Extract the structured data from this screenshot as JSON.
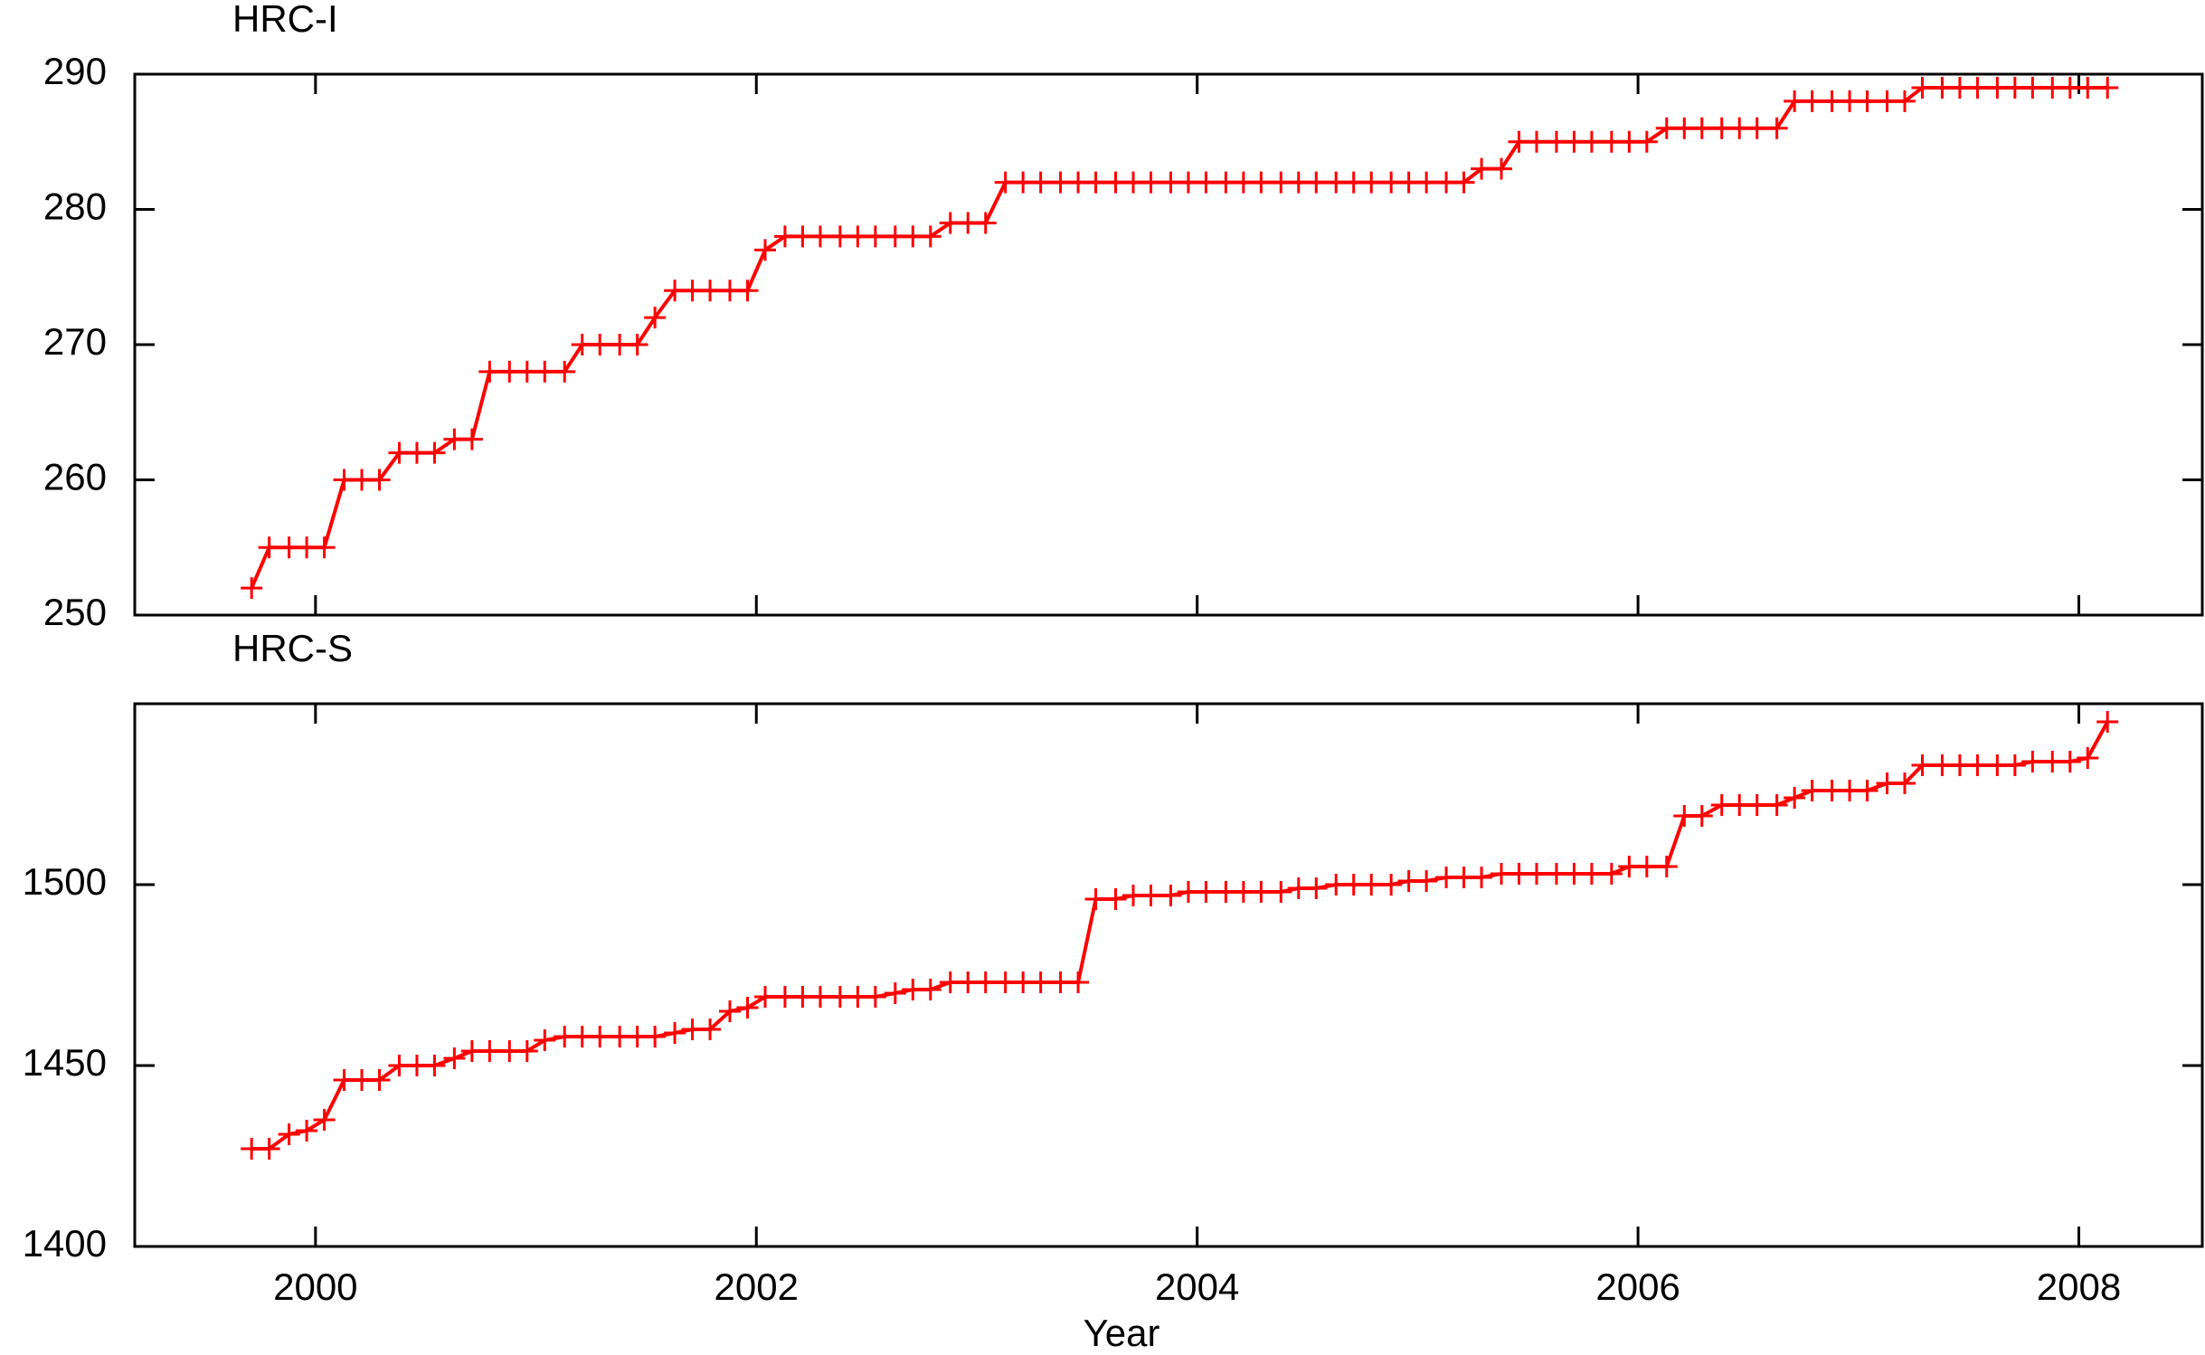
{
  "chart_data": [
    {
      "type": "line",
      "title": "HRC-I",
      "x": [
        1999.71,
        1999.79,
        1999.88,
        1999.96,
        2000.04,
        2000.13,
        2000.21,
        2000.29,
        2000.38,
        2000.46,
        2000.54,
        2000.63,
        2000.71,
        2000.79,
        2000.88,
        2000.96,
        2001.04,
        2001.13,
        2001.21,
        2001.29,
        2001.38,
        2001.46,
        2001.54,
        2001.63,
        2001.71,
        2001.79,
        2001.88,
        2001.96,
        2002.04,
        2002.13,
        2002.21,
        2002.29,
        2002.38,
        2002.46,
        2002.54,
        2002.63,
        2002.71,
        2002.79,
        2002.88,
        2002.96,
        2003.04,
        2003.13,
        2003.21,
        2003.29,
        2003.38,
        2003.46,
        2003.54,
        2003.63,
        2003.71,
        2003.79,
        2003.88,
        2003.96,
        2004.04,
        2004.13,
        2004.21,
        2004.29,
        2004.38,
        2004.46,
        2004.54,
        2004.63,
        2004.71,
        2004.79,
        2004.88,
        2004.96,
        2005.04,
        2005.13,
        2005.21,
        2005.29,
        2005.38,
        2005.46,
        2005.54,
        2005.63,
        2005.71,
        2005.79,
        2005.88,
        2005.96,
        2006.04,
        2006.13,
        2006.21,
        2006.29,
        2006.38,
        2006.46,
        2006.54,
        2006.63,
        2006.71,
        2006.79,
        2006.88,
        2006.96,
        2007.04,
        2007.13,
        2007.21,
        2007.29,
        2007.38,
        2007.46,
        2007.54,
        2007.63,
        2007.71,
        2007.79,
        2007.88,
        2007.96,
        2008.04,
        2008.13
      ],
      "series": [
        {
          "color": "#ff0000",
          "values": [
            252,
            255,
            255,
            255,
            255,
            260,
            260,
            260,
            262,
            262,
            262,
            263,
            263,
            268,
            268,
            268,
            268,
            268,
            270,
            270,
            270,
            270,
            272,
            274,
            274,
            274,
            274,
            274,
            277,
            278,
            278,
            278,
            278,
            278,
            278,
            278,
            278,
            278,
            279,
            279,
            279,
            282,
            282,
            282,
            282,
            282,
            282,
            282,
            282,
            282,
            282,
            282,
            282,
            282,
            282,
            282,
            282,
            282,
            282,
            282,
            282,
            282,
            282,
            282,
            282,
            282,
            282,
            283,
            283,
            285,
            285,
            285,
            285,
            285,
            285,
            285,
            285,
            286,
            286,
            286,
            286,
            286,
            286,
            286,
            288,
            288,
            288,
            288,
            288,
            288,
            288,
            289,
            289,
            289,
            289,
            289,
            289,
            289,
            289,
            289,
            289,
            289
          ]
        }
      ],
      "xlim": [
        1999.18,
        2008.56
      ],
      "ylim": [
        250,
        290
      ],
      "yticks": [
        250,
        260,
        270,
        280,
        290
      ]
    },
    {
      "type": "line",
      "title": "HRC-S",
      "x_label": "Year",
      "x": [
        1999.71,
        1999.79,
        1999.88,
        1999.96,
        2000.04,
        2000.13,
        2000.21,
        2000.29,
        2000.38,
        2000.46,
        2000.54,
        2000.63,
        2000.71,
        2000.79,
        2000.88,
        2000.96,
        2001.04,
        2001.13,
        2001.21,
        2001.29,
        2001.38,
        2001.46,
        2001.54,
        2001.63,
        2001.71,
        2001.79,
        2001.88,
        2001.96,
        2002.04,
        2002.13,
        2002.21,
        2002.29,
        2002.38,
        2002.46,
        2002.54,
        2002.63,
        2002.71,
        2002.79,
        2002.88,
        2002.96,
        2003.04,
        2003.13,
        2003.21,
        2003.29,
        2003.38,
        2003.46,
        2003.54,
        2003.63,
        2003.71,
        2003.79,
        2003.88,
        2003.96,
        2004.04,
        2004.13,
        2004.21,
        2004.29,
        2004.38,
        2004.46,
        2004.54,
        2004.63,
        2004.71,
        2004.79,
        2004.88,
        2004.96,
        2005.04,
        2005.13,
        2005.21,
        2005.29,
        2005.38,
        2005.46,
        2005.54,
        2005.63,
        2005.71,
        2005.79,
        2005.88,
        2005.96,
        2006.04,
        2006.13,
        2006.21,
        2006.29,
        2006.38,
        2006.46,
        2006.54,
        2006.63,
        2006.71,
        2006.79,
        2006.88,
        2006.96,
        2007.04,
        2007.13,
        2007.21,
        2007.29,
        2007.38,
        2007.46,
        2007.54,
        2007.63,
        2007.71,
        2007.79,
        2007.88,
        2007.96,
        2008.04,
        2008.13
      ],
      "series": [
        {
          "color": "#ff0000",
          "values": [
            1427,
            1427,
            1431,
            1432,
            1435,
            1446,
            1446,
            1446,
            1450,
            1450,
            1450,
            1452,
            1454,
            1454,
            1454,
            1454,
            1457,
            1458,
            1458,
            1458,
            1458,
            1458,
            1458,
            1459,
            1460,
            1460,
            1465,
            1466,
            1469,
            1469,
            1469,
            1469,
            1469,
            1469,
            1469,
            1470,
            1471,
            1471,
            1473,
            1473,
            1473,
            1473,
            1473,
            1473,
            1473,
            1473,
            1496,
            1496,
            1497,
            1497,
            1497,
            1498,
            1498,
            1498,
            1498,
            1498,
            1498,
            1499,
            1499,
            1500,
            1500,
            1500,
            1500,
            1501,
            1501,
            1502,
            1502,
            1502,
            1503,
            1503,
            1503,
            1503,
            1503,
            1503,
            1503,
            1505,
            1505,
            1505,
            1519,
            1519,
            1522,
            1522,
            1522,
            1522,
            1524,
            1526,
            1526,
            1526,
            1526,
            1528,
            1528,
            1533,
            1533,
            1533,
            1533,
            1533,
            1533,
            1534,
            1534,
            1534,
            1535,
            1545
          ]
        }
      ],
      "xlim": [
        1999.18,
        2008.56
      ],
      "xticks": [
        2000,
        2002,
        2004,
        2006,
        2008
      ],
      "ylim": [
        1400,
        1550
      ],
      "yticks": [
        1400,
        1450,
        1500
      ]
    }
  ]
}
